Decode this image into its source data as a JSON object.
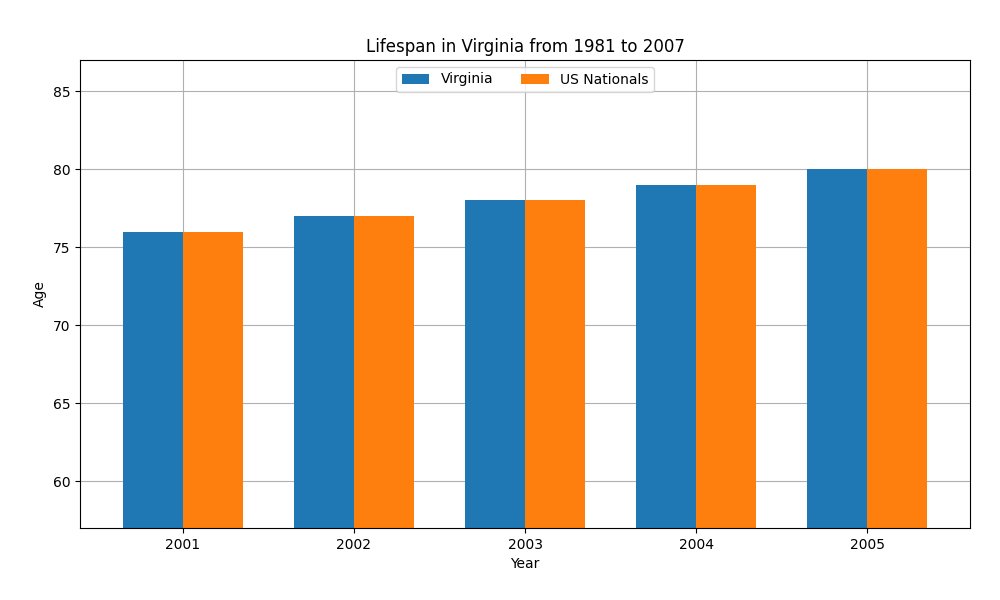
{
  "chart_data": {
    "type": "bar",
    "title": "Lifespan in Virginia from 1981 to 2007",
    "x_label": "Year",
    "y_label": "Age",
    "categories": [
      "2001",
      "2002",
      "2003",
      "2004",
      "2005"
    ],
    "series": [
      {
        "name": "Virginia",
        "values": [
          76,
          77,
          78,
          79,
          80
        ]
      },
      {
        "name": "US Nationals",
        "values": [
          76,
          77,
          78,
          79,
          80
        ]
      }
    ],
    "ylim": [
      57,
      87
    ],
    "yticks": [
      60,
      65,
      70,
      75,
      80,
      85
    ],
    "grid": true,
    "legend": "upper center"
  }
}
